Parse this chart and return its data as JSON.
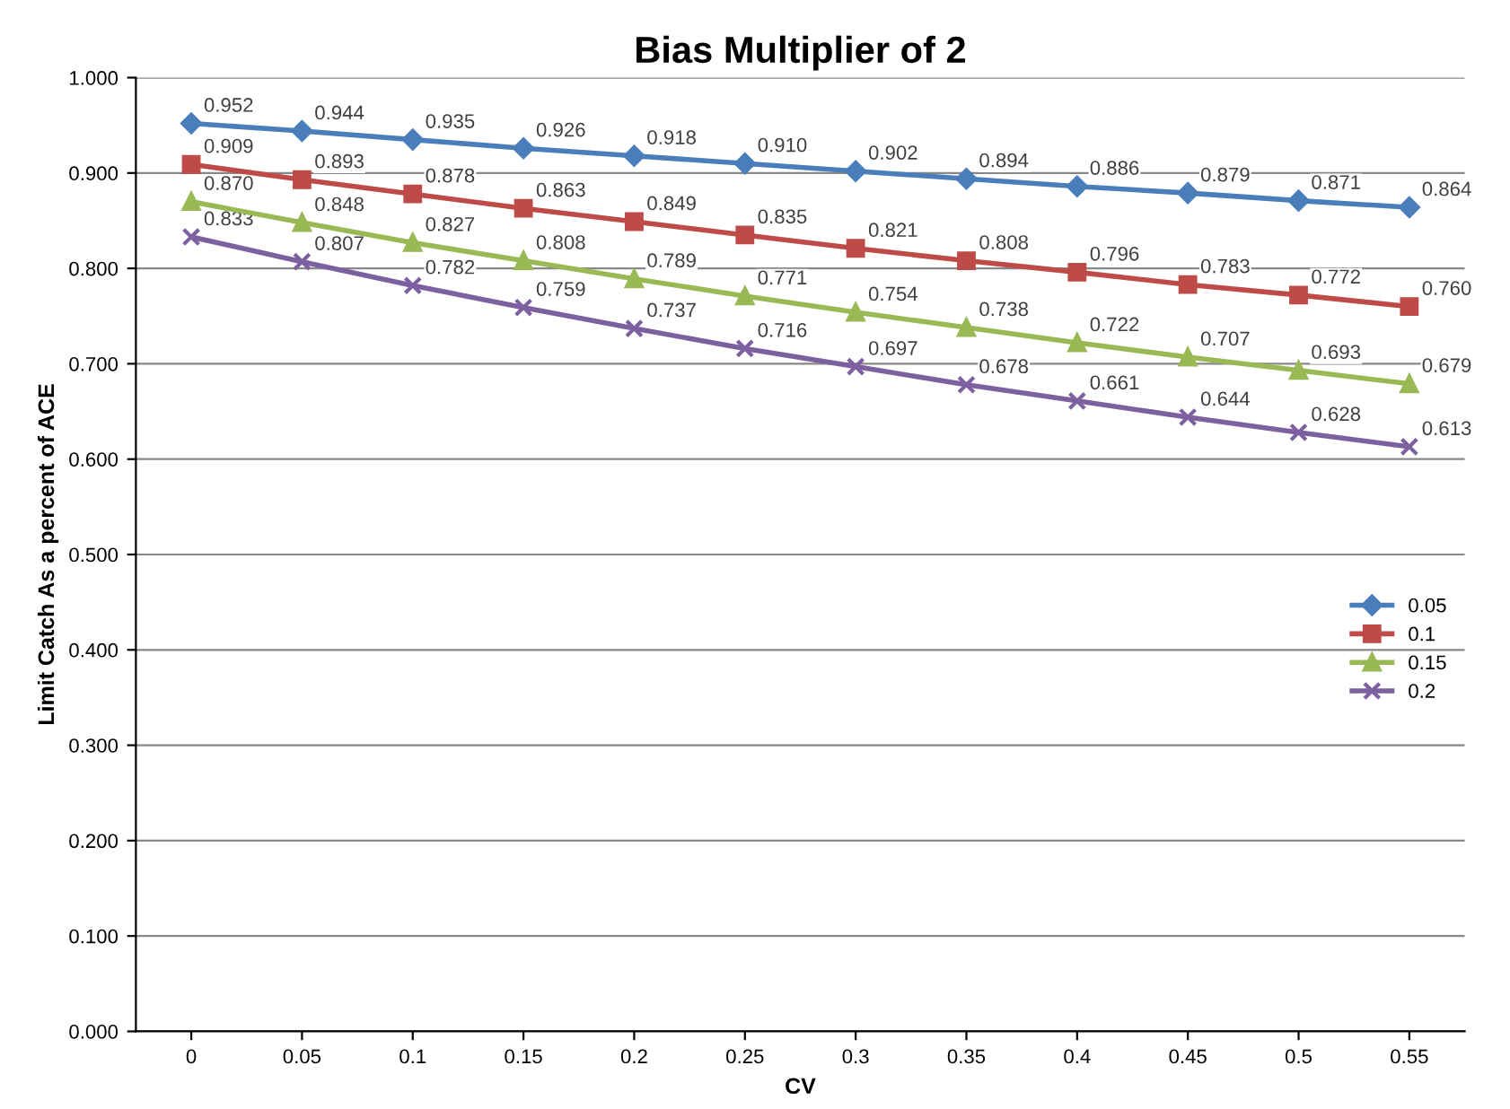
{
  "chart_data": {
    "type": "line",
    "title": "Bias Multiplier of 2",
    "xlabel": "CV",
    "ylabel": "Limit Catch As a percent of ACE",
    "categories": [
      "0",
      "0.05",
      "0.1",
      "0.15",
      "0.2",
      "0.25",
      "0.3",
      "0.35",
      "0.4",
      "0.45",
      "0.5",
      "0.55"
    ],
    "series": [
      {
        "name": "0.05",
        "color": "#4a7ebb",
        "marker": "diamond",
        "values": [
          0.952,
          0.944,
          0.935,
          0.926,
          0.918,
          0.91,
          0.902,
          0.894,
          0.886,
          0.879,
          0.871,
          0.864
        ],
        "value_labels": [
          "0.952",
          "0.944",
          "0.935",
          "0.926",
          "0.918",
          "0.910",
          "0.902",
          "0.894",
          "0.886",
          "0.879",
          "0.871",
          "0.864"
        ]
      },
      {
        "name": "0.1",
        "color": "#be4b48",
        "marker": "square",
        "values": [
          0.909,
          0.893,
          0.878,
          0.863,
          0.849,
          0.835,
          0.821,
          0.808,
          0.796,
          0.783,
          0.772,
          0.76
        ],
        "value_labels": [
          "0.909",
          "0.893",
          "0.878",
          "0.863",
          "0.849",
          "0.835",
          "0.821",
          "0.808",
          "0.796",
          "0.783",
          "0.772",
          "0.760"
        ]
      },
      {
        "name": "0.15",
        "color": "#98b954",
        "marker": "triangle",
        "values": [
          0.87,
          0.848,
          0.827,
          0.808,
          0.789,
          0.771,
          0.754,
          0.738,
          0.722,
          0.707,
          0.693,
          0.679
        ],
        "value_labels": [
          "0.870",
          "0.848",
          "0.827",
          "0.808",
          "0.789",
          "0.771",
          "0.754",
          "0.738",
          "0.722",
          "0.707",
          "0.693",
          "0.679"
        ]
      },
      {
        "name": "0.2",
        "color": "#7d60a0",
        "marker": "cross",
        "values": [
          0.833,
          0.807,
          0.782,
          0.759,
          0.737,
          0.716,
          0.697,
          0.678,
          0.661,
          0.644,
          0.628,
          0.613
        ],
        "value_labels": [
          "0.833",
          "0.807",
          "0.782",
          "0.759",
          "0.737",
          "0.716",
          "0.697",
          "0.678",
          "0.661",
          "0.644",
          "0.628",
          "0.613"
        ]
      }
    ],
    "ylim": [
      0,
      1
    ],
    "yticks": [
      {
        "value": 0,
        "label": "0.000"
      },
      {
        "value": 0.1,
        "label": "0.100"
      },
      {
        "value": 0.2,
        "label": "0.200"
      },
      {
        "value": 0.3,
        "label": "0.300"
      },
      {
        "value": 0.4,
        "label": "0.400"
      },
      {
        "value": 0.5,
        "label": "0.500"
      },
      {
        "value": 0.6,
        "label": "0.600"
      },
      {
        "value": 0.7,
        "label": "0.700"
      },
      {
        "value": 0.8,
        "label": "0.800"
      },
      {
        "value": 0.9,
        "label": "0.900"
      },
      {
        "value": 1,
        "label": "1.000"
      }
    ],
    "grid": "y",
    "legend": "right",
    "line_style": "solid"
  }
}
